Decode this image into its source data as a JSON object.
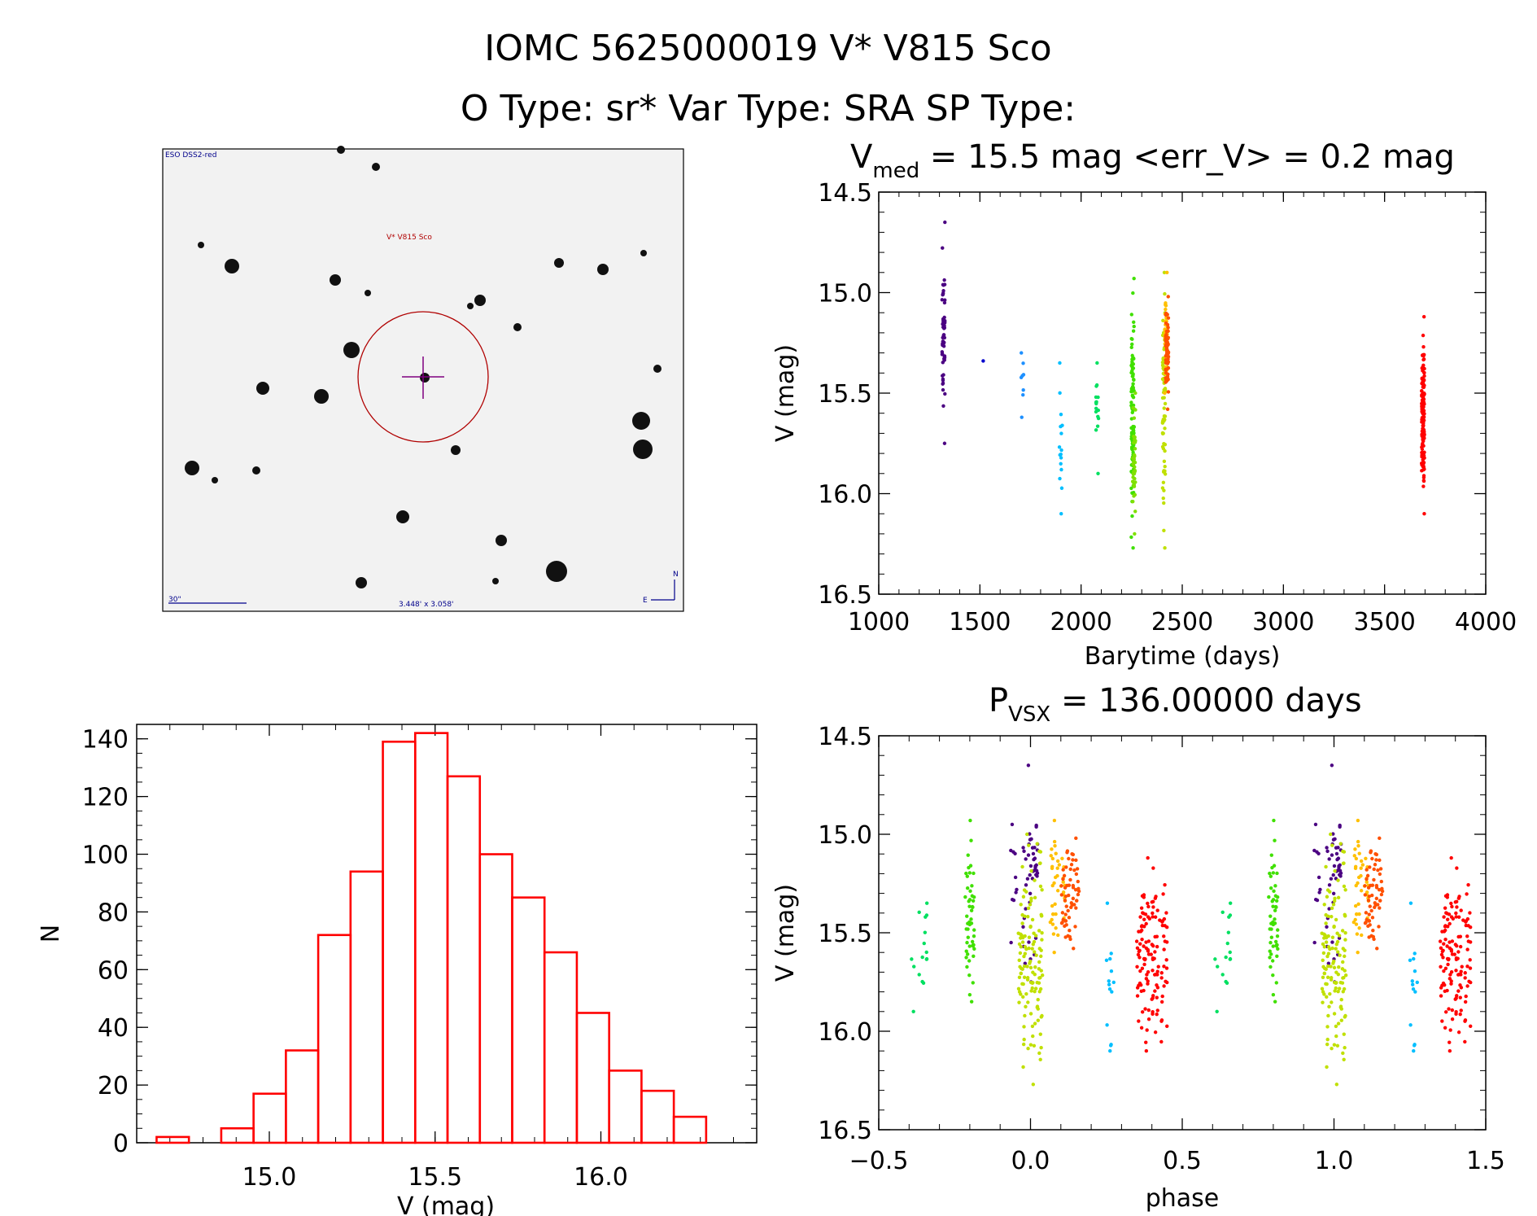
{
  "header": {
    "title_line1": "IOMC 5625000019    V* V815 Sco",
    "title_line2": "O Type: sr*  Var Type: SRA  SP Type:"
  },
  "finder": {
    "survey_label": "ESO DSS2-red",
    "target_label": "V* V815 Sco",
    "scale_label": "30\"",
    "fov_label": "3.448' x 3.058'",
    "north_label": "N",
    "east_label": "E"
  },
  "chart_data": [
    {
      "type": "scatter",
      "name": "light_curve",
      "title_main": "V",
      "title_sub": "med",
      "title_rest": " = 15.5 mag <err_V> = 0.2 mag",
      "xlabel": "Barytime (days)",
      "ylabel": "V (mag)",
      "xlim": [
        1000,
        4000
      ],
      "ylim": [
        16.5,
        14.5
      ],
      "xticks": [
        "1000",
        "1500",
        "2000",
        "2500",
        "3000",
        "3500",
        "4000"
      ],
      "yticks": [
        "14.5",
        "15.0",
        "15.5",
        "16.0",
        "16.5"
      ],
      "clusters": [
        {
          "x": 1320,
          "y_min": 14.65,
          "y_max": 15.75,
          "n": 60,
          "color": "#4b0082"
        },
        {
          "x": 1510,
          "y_min": 15.34,
          "y_max": 15.35,
          "n": 1,
          "color": "#0000cd"
        },
        {
          "x": 1710,
          "y_min": 15.3,
          "y_max": 15.62,
          "n": 8,
          "color": "#1e90ff"
        },
        {
          "x": 1900,
          "y_min": 15.35,
          "y_max": 16.1,
          "n": 16,
          "color": "#00bfff"
        },
        {
          "x": 2080,
          "y_min": 15.35,
          "y_max": 15.9,
          "n": 16,
          "color": "#00e060"
        },
        {
          "x": 2255,
          "y_min": 14.93,
          "y_max": 16.27,
          "n": 110,
          "color": "#40e000"
        },
        {
          "x": 2262,
          "y_min": 15.5,
          "y_max": 16.2,
          "n": 40,
          "color": "#80e000"
        },
        {
          "x": 2410,
          "y_min": 14.9,
          "y_max": 16.27,
          "n": 70,
          "color": "#c0e000"
        },
        {
          "x": 2420,
          "y_min": 14.9,
          "y_max": 15.5,
          "n": 40,
          "color": "#ffc000"
        },
        {
          "x": 2425,
          "y_min": 15.02,
          "y_max": 15.58,
          "n": 70,
          "color": "#ff5000"
        },
        {
          "x": 3690,
          "y_min": 15.12,
          "y_max": 16.1,
          "n": 150,
          "color": "#ff0000"
        }
      ]
    },
    {
      "type": "bar",
      "name": "histogram",
      "xlabel": "V (mag)",
      "ylabel": "N",
      "xlim": [
        14.6,
        16.47
      ],
      "ylim": [
        0,
        145
      ],
      "xticks": [
        "15.0",
        "15.5",
        "16.0"
      ],
      "yticks": [
        "0",
        "20",
        "40",
        "60",
        "80",
        "100",
        "120",
        "140"
      ],
      "bin_width": 0.0975,
      "bin_start": 14.66,
      "values": [
        2,
        0,
        5,
        17,
        32,
        72,
        94,
        139,
        142,
        127,
        100,
        85,
        66,
        45,
        25,
        18,
        9
      ],
      "color": "#ff0000"
    },
    {
      "type": "scatter",
      "name": "phase_curve",
      "title_main": "P",
      "title_sub": "VSX",
      "title_rest": " = 136.00000 days",
      "xlabel": "phase",
      "ylabel": "V (mag)",
      "xlim": [
        -0.5,
        1.5
      ],
      "ylim": [
        16.5,
        14.5
      ],
      "xticks": [
        "−0.5",
        "0.0",
        "0.5",
        "1.0",
        "1.5"
      ],
      "yticks": [
        "14.5",
        "15.0",
        "15.5",
        "16.0",
        "16.5"
      ],
      "clusters": [
        {
          "x": -0.37,
          "w": 0.06,
          "y_min": 15.35,
          "y_max": 15.9,
          "n": 16,
          "color": "#00e060"
        },
        {
          "x": -0.2,
          "w": 0.03,
          "y_min": 14.93,
          "y_max": 15.85,
          "n": 50,
          "color": "#40e000"
        },
        {
          "x": -0.06,
          "w": 0.03,
          "y_min": 14.95,
          "y_max": 15.55,
          "n": 10,
          "color": "#4b0082"
        },
        {
          "x": 0.0,
          "w": 0.05,
          "y_min": 14.65,
          "y_max": 15.75,
          "n": 45,
          "color": "#4b0082"
        },
        {
          "x": 0.0,
          "w": 0.08,
          "y_min": 15.0,
          "y_max": 16.27,
          "n": 130,
          "color": "#c0e000"
        },
        {
          "x": 0.09,
          "w": 0.05,
          "y_min": 14.93,
          "y_max": 15.6,
          "n": 40,
          "color": "#ffc000"
        },
        {
          "x": 0.13,
          "w": 0.06,
          "y_min": 15.02,
          "y_max": 15.58,
          "n": 60,
          "color": "#ff5000"
        },
        {
          "x": 0.26,
          "w": 0.03,
          "y_min": 15.35,
          "y_max": 16.1,
          "n": 14,
          "color": "#00bfff"
        },
        {
          "x": 0.4,
          "w": 0.1,
          "y_min": 15.12,
          "y_max": 16.1,
          "n": 130,
          "color": "#ff0000"
        }
      ]
    }
  ]
}
